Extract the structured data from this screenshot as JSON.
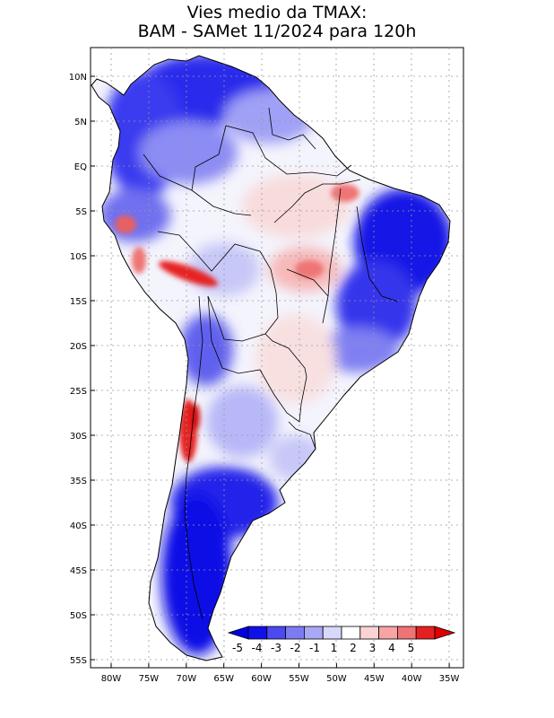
{
  "title": {
    "line1": "Vies medio da TMAX:",
    "line2": "BAM - SAMet 11/2024  para 120h"
  },
  "axes": {
    "lat_labels": [
      "10N",
      "5N",
      "EQ",
      "5S",
      "10S",
      "15S",
      "20S",
      "25S",
      "30S",
      "35S",
      "40S",
      "45S",
      "50S",
      "55S"
    ],
    "lon_labels": [
      "80W",
      "75W",
      "70W",
      "65W",
      "60W",
      "55W",
      "50W",
      "45W",
      "40W",
      "35W"
    ]
  },
  "map": {
    "region": "South America",
    "lon_range": [
      -83,
      -34
    ],
    "lat_range": [
      -56,
      13
    ],
    "colors": {
      "land_neutral": "#ffffff",
      "ocean": "#ffffff",
      "border": "#000000"
    }
  },
  "colorbar": {
    "labels": [
      "-5",
      "-4",
      "-3",
      "-2",
      "-1",
      "1",
      "2",
      "3",
      "4",
      "5"
    ],
    "colors": [
      "#1010e8",
      "#4a4af0",
      "#7c7cf2",
      "#a8a8f6",
      "#d8d8fa",
      "#ffffff",
      "#fad4d4",
      "#f6a4a4",
      "#f07474",
      "#e62020"
    ]
  }
}
